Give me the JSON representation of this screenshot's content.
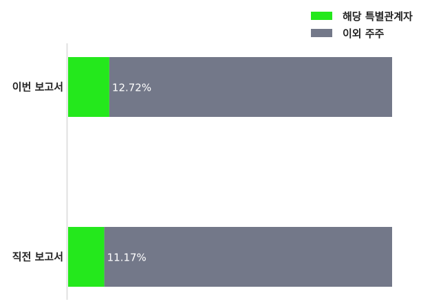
{
  "chart_data": {
    "type": "bar",
    "orientation": "horizontal",
    "stacked": true,
    "categories": [
      "이번 보고서",
      "직전 보고서"
    ],
    "series": [
      {
        "name": "해당 특별관계자",
        "values": [
          12.72,
          11.17
        ],
        "color": "#24e81c"
      },
      {
        "name": "이외 주주",
        "values": [
          87.28,
          88.83
        ],
        "color": "#737889"
      }
    ],
    "data_labels": [
      "12.72%",
      "11.17%"
    ],
    "xlim": [
      0,
      100
    ],
    "grid": false,
    "legend": "top-right"
  }
}
